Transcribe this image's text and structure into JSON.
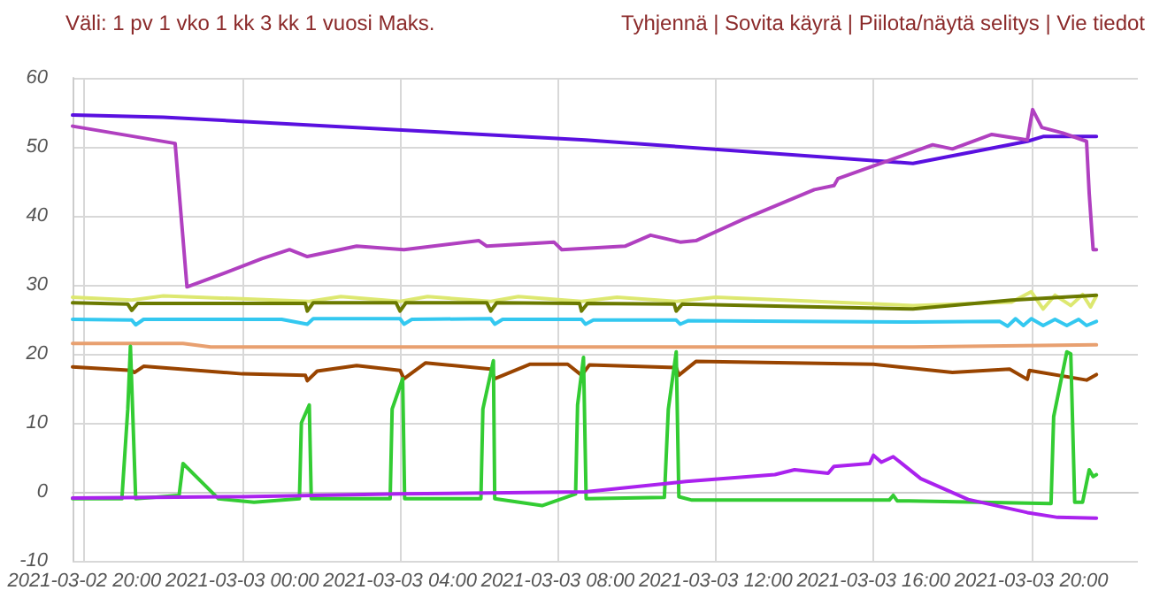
{
  "chart_data": {
    "type": "line",
    "annotations": [
      "Väli: 1 pv 1 vko 1 kk 3 kk 1 vuosi Maks.",
      "Tyhjennä |  Sovita käyrä |  Piilota/näytä selitys |  Vie tiedot"
    ],
    "xlim": [
      "2021-03-02T19:42",
      "2021-03-03T22:42"
    ],
    "ylim": [
      -10,
      60
    ],
    "xticks": [
      {
        "value": "2021-03-02T20:00",
        "label": "2021-03-02 20:00"
      },
      {
        "value": "2021-03-03T00:00",
        "label": "2021-03-03 00:00"
      },
      {
        "value": "2021-03-03T04:00",
        "label": "2021-03-03 04:00"
      },
      {
        "value": "2021-03-03T08:00",
        "label": "2021-03-03 08:00"
      },
      {
        "value": "2021-03-03T12:00",
        "label": "2021-03-03 12:00"
      },
      {
        "value": "2021-03-03T16:00",
        "label": "2021-03-03 16:00"
      },
      {
        "value": "2021-03-03T20:00",
        "label": "2021-03-03 20:00"
      }
    ],
    "yticks": [
      -10,
      0,
      10,
      20,
      30,
      40,
      50,
      60
    ],
    "grid": true,
    "marker": "none",
    "line_style": "solid",
    "series": [
      {
        "color": "#5a10e0",
        "x": [
          "2021-03-02T19:42",
          "2021-03-02T22:00",
          "2021-03-03T08:42",
          "2021-03-03T17:00",
          "2021-03-03T19:54",
          "2021-03-03T20:18",
          "2021-03-03T21:39"
        ],
        "values": [
          54.6,
          54.3,
          51,
          47.6,
          50.8,
          51.5,
          51.5
        ]
      },
      {
        "color": "#b040c0",
        "x": [
          "2021-03-02T19:42",
          "2021-03-02T22:18",
          "2021-03-02T22:36",
          "2021-03-02T23:36",
          "2021-03-03T00:30",
          "2021-03-03T01:12",
          "2021-03-03T01:39",
          "2021-03-03T02:54",
          "2021-03-03T04:06",
          "2021-03-03T06:00",
          "2021-03-03T06:12",
          "2021-03-03T07:54",
          "2021-03-03T08:06",
          "2021-03-03T09:42",
          "2021-03-03T10:21",
          "2021-03-03T11:06",
          "2021-03-03T11:30",
          "2021-03-03T12:42",
          "2021-03-03T14:30",
          "2021-03-03T15:00",
          "2021-03-03T15:06",
          "2021-03-03T17:30",
          "2021-03-03T18:00",
          "2021-03-03T19:00",
          "2021-03-03T19:54",
          "2021-03-03T20:02",
          "2021-03-03T20:16",
          "2021-03-03T20:48",
          "2021-03-03T21:24",
          "2021-03-03T21:28",
          "2021-03-03T21:34",
          "2021-03-03T21:39"
        ],
        "values": [
          53,
          50.5,
          29.7,
          31.8,
          33.8,
          35.1,
          34.1,
          35.6,
          35.1,
          36.4,
          35.6,
          36.2,
          35.1,
          35.6,
          37.2,
          36.2,
          36.4,
          39.5,
          43.8,
          44.4,
          45.4,
          50.3,
          49.7,
          51.8,
          51,
          55.4,
          52.8,
          52,
          50.8,
          43.3,
          35.1,
          35.1
        ]
      },
      {
        "color": "#dde870",
        "x": [
          "2021-03-02T19:42",
          "2021-03-02T21:12",
          "2021-03-02T22:00",
          "2021-03-03T01:42",
          "2021-03-03T02:30",
          "2021-03-03T04:00",
          "2021-03-03T04:42",
          "2021-03-03T06:18",
          "2021-03-03T07:00",
          "2021-03-03T08:36",
          "2021-03-03T09:30",
          "2021-03-03T11:00",
          "2021-03-03T12:00",
          "2021-03-03T17:00",
          "2021-03-03T19:30",
          "2021-03-03T20:00",
          "2021-03-03T20:18",
          "2021-03-03T20:36",
          "2021-03-03T21:00",
          "2021-03-03T21:18",
          "2021-03-03T21:30",
          "2021-03-03T21:39"
        ],
        "values": [
          28.2,
          27.8,
          28.4,
          27.6,
          28.3,
          27.6,
          28.3,
          27.6,
          28.3,
          27.6,
          28.2,
          27.6,
          28.2,
          27,
          27.5,
          29,
          26.5,
          28.5,
          27,
          28.6,
          26.8,
          28.4
        ]
      },
      {
        "color": "#6b7a00",
        "x": [
          "2021-03-02T19:42",
          "2021-03-02T21:06",
          "2021-03-02T21:12",
          "2021-03-02T21:21",
          "2021-03-03T01:36",
          "2021-03-03T01:39",
          "2021-03-03T01:48",
          "2021-03-03T03:54",
          "2021-03-03T04:00",
          "2021-03-03T04:09",
          "2021-03-03T06:12",
          "2021-03-03T06:18",
          "2021-03-03T06:27",
          "2021-03-03T08:33",
          "2021-03-03T08:36",
          "2021-03-03T08:45",
          "2021-03-03T10:57",
          "2021-03-03T11:00",
          "2021-03-03T11:09",
          "2021-03-03T17:00",
          "2021-03-03T19:30",
          "2021-03-03T21:39"
        ],
        "values": [
          27.4,
          27.2,
          26.3,
          27.3,
          27.3,
          26.2,
          27.4,
          27.4,
          26.2,
          27.4,
          27.4,
          26.2,
          27.4,
          27.3,
          26.2,
          27.3,
          27.2,
          26.2,
          27.2,
          26.5,
          27.8,
          28.5
        ]
      },
      {
        "color": "#33c8f0",
        "x": [
          "2021-03-02T19:42",
          "2021-03-02T21:12",
          "2021-03-02T21:18",
          "2021-03-02T21:30",
          "2021-03-03T01:00",
          "2021-03-03T01:39",
          "2021-03-03T01:48",
          "2021-03-03T04:00",
          "2021-03-03T04:06",
          "2021-03-03T04:18",
          "2021-03-03T06:18",
          "2021-03-03T06:24",
          "2021-03-03T06:36",
          "2021-03-03T08:36",
          "2021-03-03T08:42",
          "2021-03-03T08:54",
          "2021-03-03T11:00",
          "2021-03-03T11:06",
          "2021-03-03T11:18",
          "2021-03-03T17:00",
          "2021-03-03T19:12",
          "2021-03-03T19:24",
          "2021-03-03T19:36",
          "2021-03-03T19:48",
          "2021-03-03T20:00",
          "2021-03-03T20:18",
          "2021-03-03T20:36",
          "2021-03-03T20:54",
          "2021-03-03T21:12",
          "2021-03-03T21:24",
          "2021-03-03T21:39"
        ],
        "values": [
          25,
          24.9,
          24.2,
          25,
          25,
          24.3,
          25.1,
          25.1,
          24.3,
          25,
          25.1,
          24.3,
          25,
          25,
          24.3,
          24.9,
          24.9,
          24.3,
          24.8,
          24.6,
          24.7,
          24,
          25.1,
          24.1,
          25.1,
          24.1,
          25,
          24.1,
          25,
          24.1,
          24.7
        ]
      },
      {
        "color": "#e8a070",
        "x": [
          "2021-03-02T19:42",
          "2021-03-02T22:30",
          "2021-03-02T23:12",
          "2021-03-03T17:00",
          "2021-03-03T21:39"
        ],
        "values": [
          21.5,
          21.5,
          21,
          21,
          21.3
        ]
      },
      {
        "color": "#994400",
        "x": [
          "2021-03-02T19:42",
          "2021-03-02T21:12",
          "2021-03-02T21:16",
          "2021-03-02T21:30",
          "2021-03-03T00:00",
          "2021-03-03T01:36",
          "2021-03-03T01:39",
          "2021-03-03T01:54",
          "2021-03-03T02:54",
          "2021-03-03T04:00",
          "2021-03-03T04:06",
          "2021-03-03T04:39",
          "2021-03-03T06:18",
          "2021-03-03T06:24",
          "2021-03-03T07:18",
          "2021-03-03T08:15",
          "2021-03-03T08:36",
          "2021-03-03T08:48",
          "2021-03-03T11:00",
          "2021-03-03T11:04",
          "2021-03-03T11:30",
          "2021-03-03T16:00",
          "2021-03-03T18:00",
          "2021-03-03T19:27",
          "2021-03-03T19:54",
          "2021-03-03T19:57",
          "2021-03-03T21:24",
          "2021-03-03T21:39"
        ],
        "values": [
          18.1,
          17.6,
          17.3,
          18.2,
          17.1,
          16.9,
          16.1,
          17.5,
          18.3,
          17.6,
          16.4,
          18.7,
          17.8,
          16.4,
          18.5,
          18.5,
          16.9,
          18.4,
          18,
          16.9,
          18.9,
          18.5,
          17.3,
          17.8,
          16.3,
          17.6,
          16.2,
          17
        ]
      },
      {
        "color": "#33cc33",
        "x": [
          "2021-03-02T19:42",
          "2021-03-02T20:57",
          "2021-03-02T21:06",
          "2021-03-02T21:10",
          "2021-03-02T21:18",
          "2021-03-02T22:24",
          "2021-03-02T22:30",
          "2021-03-02T23:24",
          "2021-03-03T00:18",
          "2021-03-03T01:27",
          "2021-03-03T01:30",
          "2021-03-03T01:42",
          "2021-03-03T01:45",
          "2021-03-03T03:45",
          "2021-03-03T03:48",
          "2021-03-03T04:04",
          "2021-03-03T04:07",
          "2021-03-03T06:03",
          "2021-03-03T06:06",
          "2021-03-03T06:22",
          "2021-03-03T06:24",
          "2021-03-03T07:36",
          "2021-03-03T08:27",
          "2021-03-03T08:30",
          "2021-03-03T08:39",
          "2021-03-03T08:43",
          "2021-03-03T10:42",
          "2021-03-03T10:48",
          "2021-03-03T11:00",
          "2021-03-03T11:04",
          "2021-03-03T11:24",
          "2021-03-03T16:24",
          "2021-03-03T16:30",
          "2021-03-03T16:36",
          "2021-03-03T16:54",
          "2021-03-03T20:30",
          "2021-03-03T20:34",
          "2021-03-03T20:54",
          "2021-03-03T21:00",
          "2021-03-03T21:06",
          "2021-03-03T21:18",
          "2021-03-03T21:28",
          "2021-03-03T21:34",
          "2021-03-03T21:39"
        ],
        "values": [
          -1,
          -1,
          12,
          21.1,
          -1,
          -0.5,
          4.1,
          -1,
          -1.5,
          -1,
          10,
          12.6,
          -1,
          -1,
          12,
          16.4,
          -1,
          -1,
          12,
          19,
          -1,
          -2,
          -0.3,
          12.6,
          19.5,
          -1,
          -0.8,
          12,
          20.3,
          -0.7,
          -1.2,
          -1.2,
          -0.5,
          -1.3,
          -1.3,
          -1.7,
          10.9,
          20.3,
          20,
          -1.5,
          -1.5,
          3.2,
          2.2,
          2.5
        ]
      },
      {
        "color": "#aa22ee",
        "x": [
          "2021-03-02T19:42",
          "2021-03-03T00:00",
          "2021-03-03T04:00",
          "2021-03-03T08:42",
          "2021-03-03T11:15",
          "2021-03-03T13:30",
          "2021-03-03T14:00",
          "2021-03-03T14:51",
          "2021-03-03T15:00",
          "2021-03-03T15:54",
          "2021-03-03T16:00",
          "2021-03-03T16:12",
          "2021-03-03T16:30",
          "2021-03-03T17:12",
          "2021-03-03T18:24",
          "2021-03-03T19:54",
          "2021-03-03T20:40",
          "2021-03-03T21:39"
        ],
        "values": [
          -0.9,
          -0.7,
          -0.3,
          0,
          1.5,
          2.5,
          3.2,
          2.7,
          3.7,
          4.1,
          5.3,
          4.3,
          5.1,
          1.9,
          -1.1,
          -3,
          -3.7,
          -3.8
        ]
      }
    ]
  }
}
